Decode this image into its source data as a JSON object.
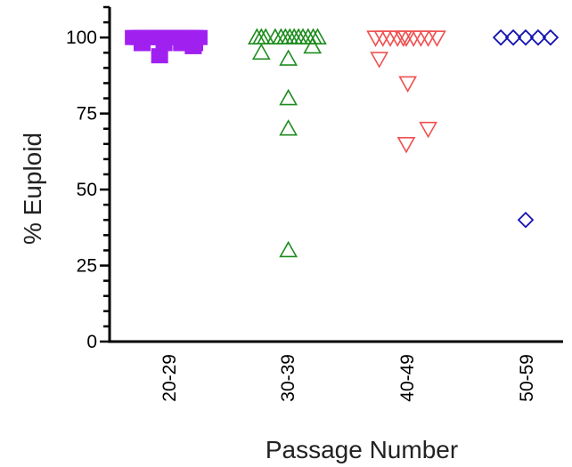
{
  "chart_data": {
    "type": "scatter",
    "title": "",
    "xlabel": "Passage Number",
    "ylabel": "% Euploid",
    "categories": [
      "20-29",
      "30-39",
      "40-49",
      "50-59"
    ],
    "ylim": [
      0,
      110
    ],
    "yticks": [
      0,
      25,
      50,
      75,
      100
    ],
    "grid": false,
    "legend": "none",
    "series": [
      {
        "category": "20-29",
        "marker": "square-filled",
        "color": "#a020f0",
        "points": [
          {
            "x": -0.48,
            "y": 100
          },
          {
            "x": -0.42,
            "y": 100
          },
          {
            "x": -0.36,
            "y": 100
          },
          {
            "x": -0.3,
            "y": 100
          },
          {
            "x": -0.24,
            "y": 100
          },
          {
            "x": -0.18,
            "y": 100
          },
          {
            "x": -0.12,
            "y": 100
          },
          {
            "x": -0.06,
            "y": 100
          },
          {
            "x": 0.0,
            "y": 100
          },
          {
            "x": 0.06,
            "y": 100
          },
          {
            "x": 0.12,
            "y": 100
          },
          {
            "x": 0.18,
            "y": 100
          },
          {
            "x": 0.24,
            "y": 100
          },
          {
            "x": 0.3,
            "y": 100
          },
          {
            "x": 0.36,
            "y": 100
          },
          {
            "x": 0.42,
            "y": 100
          },
          {
            "x": -0.36,
            "y": 98
          },
          {
            "x": -0.06,
            "y": 98
          },
          {
            "x": 0.18,
            "y": 98
          },
          {
            "x": 0.36,
            "y": 98
          },
          {
            "x": 0.34,
            "y": 97
          },
          {
            "x": -0.12,
            "y": 94
          }
        ]
      },
      {
        "category": "30-39",
        "marker": "triangle-up-open",
        "color": "#1e8c1e",
        "points": [
          {
            "x": -0.41,
            "y": 100
          },
          {
            "x": -0.35,
            "y": 100
          },
          {
            "x": -0.29,
            "y": 100
          },
          {
            "x": -0.16,
            "y": 100
          },
          {
            "x": -0.08,
            "y": 100
          },
          {
            "x": -0.02,
            "y": 100
          },
          {
            "x": 0.04,
            "y": 100
          },
          {
            "x": 0.1,
            "y": 100
          },
          {
            "x": 0.16,
            "y": 100
          },
          {
            "x": 0.22,
            "y": 100
          },
          {
            "x": 0.29,
            "y": 100
          },
          {
            "x": 0.36,
            "y": 100
          },
          {
            "x": 0.42,
            "y": 100
          },
          {
            "x": -0.35,
            "y": 95
          },
          {
            "x": 0.35,
            "y": 97
          },
          {
            "x": 0.02,
            "y": 93
          },
          {
            "x": 0.02,
            "y": 80
          },
          {
            "x": 0.02,
            "y": 70
          },
          {
            "x": 0.02,
            "y": 30
          }
        ]
      },
      {
        "category": "40-49",
        "marker": "triangle-down-open",
        "color": "#f05050",
        "points": [
          {
            "x": -0.42,
            "y": 100
          },
          {
            "x": -0.32,
            "y": 100
          },
          {
            "x": -0.22,
            "y": 100
          },
          {
            "x": -0.12,
            "y": 100
          },
          {
            "x": -0.04,
            "y": 100
          },
          {
            "x": 0.0,
            "y": 100
          },
          {
            "x": 0.1,
            "y": 100
          },
          {
            "x": 0.2,
            "y": 100
          },
          {
            "x": 0.3,
            "y": 100
          },
          {
            "x": 0.42,
            "y": 100
          },
          {
            "x": -0.37,
            "y": 93
          },
          {
            "x": 0.02,
            "y": 85
          },
          {
            "x": 0.3,
            "y": 70
          },
          {
            "x": 0.0,
            "y": 65
          }
        ]
      },
      {
        "category": "50-59",
        "marker": "diamond-open",
        "color": "#1414b4",
        "points": [
          {
            "x": -0.34,
            "y": 100
          },
          {
            "x": -0.17,
            "y": 100
          },
          {
            "x": 0.0,
            "y": 100
          },
          {
            "x": 0.17,
            "y": 100
          },
          {
            "x": 0.34,
            "y": 100
          },
          {
            "x": 0.0,
            "y": 40
          }
        ]
      }
    ]
  }
}
